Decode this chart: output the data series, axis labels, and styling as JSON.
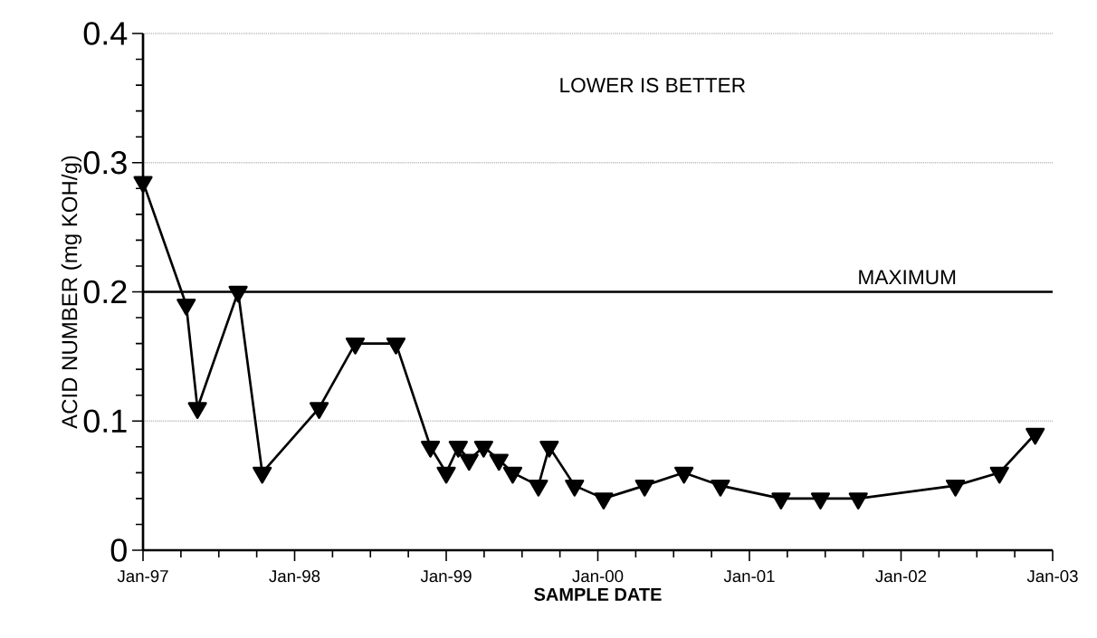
{
  "chart_data": {
    "type": "line",
    "xlabel": "SAMPLE DATE",
    "ylabel": "ACID NUMBER (mg KOH/g)",
    "x": [
      "1997-01-01",
      "1997-04-15",
      "1997-05-12",
      "1997-08-18",
      "1997-10-15",
      "1998-03-01",
      "1998-05-27",
      "1998-09-02",
      "1998-11-24",
      "1999-01-01",
      "1999-01-30",
      "1999-02-25",
      "1999-04-01",
      "1999-05-08",
      "1999-06-10",
      "1999-08-11",
      "1999-09-06",
      "1999-11-06",
      "2000-01-15",
      "2000-04-23",
      "2000-07-27",
      "2000-10-23",
      "2001-03-18",
      "2001-06-21",
      "2001-09-20",
      "2002-05-12",
      "2002-08-26",
      "2002-11-20"
    ],
    "series": [
      {
        "color": "#000000",
        "values": [
          0.285,
          0.19,
          0.11,
          0.2,
          0.06,
          0.11,
          0.16,
          0.16,
          0.08,
          0.06,
          0.08,
          0.07,
          0.08,
          0.07,
          0.06,
          0.05,
          0.08,
          0.05,
          0.04,
          0.05,
          0.06,
          0.05,
          0.04,
          0.04,
          0.04,
          0.05,
          0.06,
          0.09
        ]
      }
    ],
    "xlim": [
      "1997-01-01",
      "2003-01-01"
    ],
    "xticks": [
      {
        "value": "1997-01-01",
        "label": "Jan-97"
      },
      {
        "value": "1998-01-01",
        "label": "Jan-98"
      },
      {
        "value": "1999-01-01",
        "label": "Jan-99"
      },
      {
        "value": "2000-01-01",
        "label": "Jan-00"
      },
      {
        "value": "2001-01-01",
        "label": "Jan-01"
      },
      {
        "value": "2002-01-01",
        "label": "Jan-02"
      },
      {
        "value": "2003-01-01",
        "label": "Jan-03"
      }
    ],
    "ylim": [
      0,
      0.4
    ],
    "yticks": [
      0,
      0.1,
      0.2,
      0.3,
      0.4
    ],
    "grid": "y",
    "marker": "triangle",
    "line_style": "solid",
    "ref_lines": [
      {
        "axis": "y",
        "value": 0.2,
        "label": "MAXIMUM",
        "color": "#000000",
        "line_style": "solid"
      }
    ],
    "annotations": [
      "LOWER IS BETTER"
    ]
  }
}
